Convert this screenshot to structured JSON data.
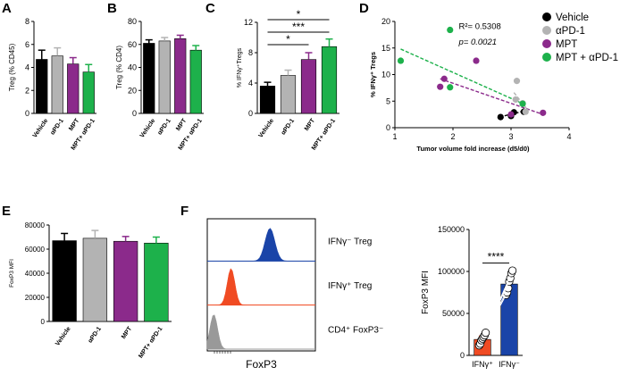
{
  "panel_letters": [
    "A",
    "B",
    "C",
    "D",
    "E",
    "F"
  ],
  "colors": {
    "vehicle": "#000000",
    "apd1": "#b3b3b3",
    "mpt": "#8b2a8b",
    "combo": "#1db14b",
    "ifng_neg": "#1a44a8",
    "ifng_pos": "#f04b23",
    "cd4_foxp3neg": "#999999"
  },
  "chart_data": [
    {
      "id": "A",
      "type": "bar",
      "categories": [
        "Vehicle",
        "αPD-1",
        "MPT",
        "MPT+ αPD-1"
      ],
      "values": [
        4.7,
        5.0,
        4.3,
        3.6
      ],
      "errors": [
        0.8,
        0.7,
        0.55,
        0.65
      ],
      "ylabel": "Treg (% CD45)",
      "ylim": [
        0,
        8
      ],
      "yticks": [
        "0",
        "2",
        "4",
        "6",
        "8"
      ]
    },
    {
      "id": "B",
      "type": "bar",
      "categories": [
        "Vehicle",
        "αPD-1",
        "MPT",
        "MPT+ αPD-1"
      ],
      "values": [
        61,
        63,
        65,
        55
      ],
      "errors": [
        3,
        3,
        3,
        4
      ],
      "ylabel": "Treg (% CD4)",
      "ylim": [
        0,
        80
      ],
      "yticks": [
        "0",
        "20",
        "40",
        "60",
        "80"
      ]
    },
    {
      "id": "C",
      "type": "bar",
      "categories": [
        "Vehicle",
        "αPD-1",
        "MPT",
        "MPT+ αPD-1"
      ],
      "values": [
        3.6,
        5.0,
        7.1,
        8.8
      ],
      "errors": [
        0.5,
        0.7,
        0.9,
        1.0
      ],
      "ylabel": "% IFNγ⁺Tregs",
      "ylim": [
        0,
        12
      ],
      "yticks": [
        "0",
        "4",
        "8",
        "12"
      ],
      "significance": [
        {
          "from": 0,
          "to": 3,
          "label": "*"
        },
        {
          "from": 0,
          "to": 3,
          "label": "***"
        },
        {
          "from": 0,
          "to": 2,
          "label": "*"
        }
      ]
    },
    {
      "id": "D",
      "type": "scatter",
      "xlabel": "Tumor volume fold increase (d5/d0)",
      "ylabel": "% IFNγ⁺ Tregs",
      "xlim": [
        1,
        4
      ],
      "ylim": [
        0,
        20
      ],
      "xticks": [
        "1",
        "2",
        "3",
        "4"
      ],
      "yticks": [
        "0",
        "5",
        "10",
        "15",
        "20"
      ],
      "annotation": {
        "r2": "R²= 0.5308",
        "p": "p= 0.0021"
      },
      "series": [
        {
          "name": "Vehicle",
          "color": "#000000",
          "points": [
            [
              2.82,
              2.0
            ],
            [
              3.05,
              2.9
            ],
            [
              3.22,
              3.0
            ],
            [
              3.0,
              2.2
            ]
          ]
        },
        {
          "name": "αPD-1",
          "color": "#b3b3b3",
          "points": [
            [
              3.1,
              8.8
            ],
            [
              3.08,
              5.3
            ],
            [
              3.2,
              4.6
            ],
            [
              3.25,
              3.0
            ]
          ]
        },
        {
          "name": "MPT",
          "color": "#8b2a8b",
          "points": [
            [
              2.4,
              12.6
            ],
            [
              1.85,
              9.2
            ],
            [
              1.78,
              7.7
            ],
            [
              3.55,
              2.8
            ],
            [
              3.0,
              2.5
            ]
          ]
        },
        {
          "name": "MPT + αPD-1",
          "color": "#1db14b",
          "points": [
            [
              1.1,
              12.6
            ],
            [
              1.95,
              18.4
            ],
            [
              1.95,
              7.6
            ],
            [
              3.2,
              4.5
            ]
          ]
        }
      ],
      "fits": [
        {
          "series": "MPT + αPD-1",
          "x": [
            1.1,
            3.25
          ],
          "y": [
            14.8,
            4.3
          ]
        },
        {
          "series": "MPT",
          "x": [
            1.78,
            3.55
          ],
          "y": [
            9.2,
            2.5
          ]
        },
        {
          "series": "αPD-1",
          "x": [
            3.05,
            3.3
          ],
          "y": [
            6.6,
            3.2
          ]
        },
        {
          "series": "Vehicle",
          "x": [
            2.8,
            3.25
          ],
          "y": [
            2.0,
            3.2
          ]
        }
      ]
    },
    {
      "id": "E",
      "type": "bar",
      "categories": [
        "Vehicle",
        "αPD-1",
        "MPT",
        "MPT+ αPD-1"
      ],
      "values": [
        67000,
        69000,
        66500,
        65000
      ],
      "errors": [
        6000,
        6500,
        4000,
        5000
      ],
      "ylabel": "FoxP3 MFI",
      "ylim": [
        0,
        80000
      ],
      "yticks": [
        "0",
        "20000",
        "40000",
        "60000",
        "80000"
      ]
    },
    {
      "id": "F_hist",
      "type": "histogram",
      "xlabel": "FoxP3",
      "tracks": [
        {
          "label": "IFNγ⁻ Treg",
          "color": "#1a44a8"
        },
        {
          "label": "IFNγ⁺ Treg",
          "color": "#f04b23"
        },
        {
          "label": "CD4⁺ FoxP3⁻",
          "color": "#999999"
        }
      ]
    },
    {
      "id": "F_bar",
      "type": "bar",
      "categories": [
        "IFNγ⁺",
        "IFNγ⁻"
      ],
      "values": [
        19000,
        85000
      ],
      "errors": [
        4000,
        5000
      ],
      "ylabel": "FoxP3 MFI",
      "ylim": [
        0,
        150000
      ],
      "yticks": [
        "0",
        "50000",
        "100000",
        "150000"
      ],
      "paired_points": [
        [
          12000,
          72000
        ],
        [
          14000,
          75000
        ],
        [
          18000,
          80000
        ],
        [
          20000,
          88000
        ],
        [
          22000,
          92000
        ],
        [
          24000,
          98000
        ],
        [
          27000,
          101000
        ]
      ],
      "significance": [
        {
          "from": 0,
          "to": 1,
          "label": "****"
        }
      ]
    }
  ]
}
